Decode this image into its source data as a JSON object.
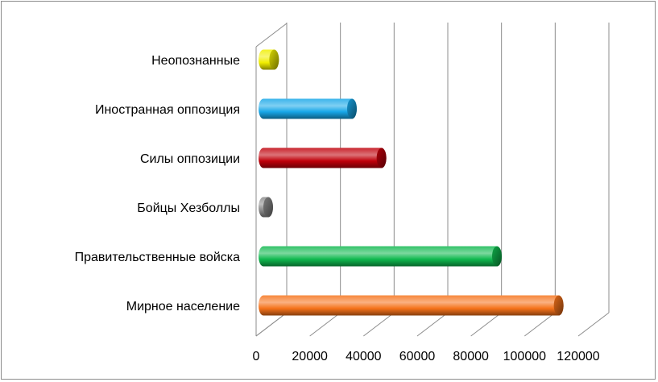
{
  "chart_data": {
    "type": "bar",
    "orientation": "horizontal",
    "style": "3d-cylinder",
    "categories": [
      "Мирное население",
      "Правительственные войска",
      "Бойцы Хезболлы",
      "Силы оппозиции",
      "Иностранная оппозиция",
      "Неопознанные"
    ],
    "values": [
      110000,
      87000,
      1000,
      44000,
      33000,
      4000
    ],
    "colors": [
      "#f5721a",
      "#0fb84e",
      "#8a8a8a",
      "#c0000a",
      "#17a7e8",
      "#f0ee00"
    ],
    "xlim": [
      0,
      120000
    ],
    "xticks": [
      "0",
      "20000",
      "40000",
      "60000",
      "80000",
      "100000",
      "120000"
    ],
    "grid": true,
    "legend": "none",
    "title": "",
    "xlabel": "",
    "ylabel": ""
  }
}
